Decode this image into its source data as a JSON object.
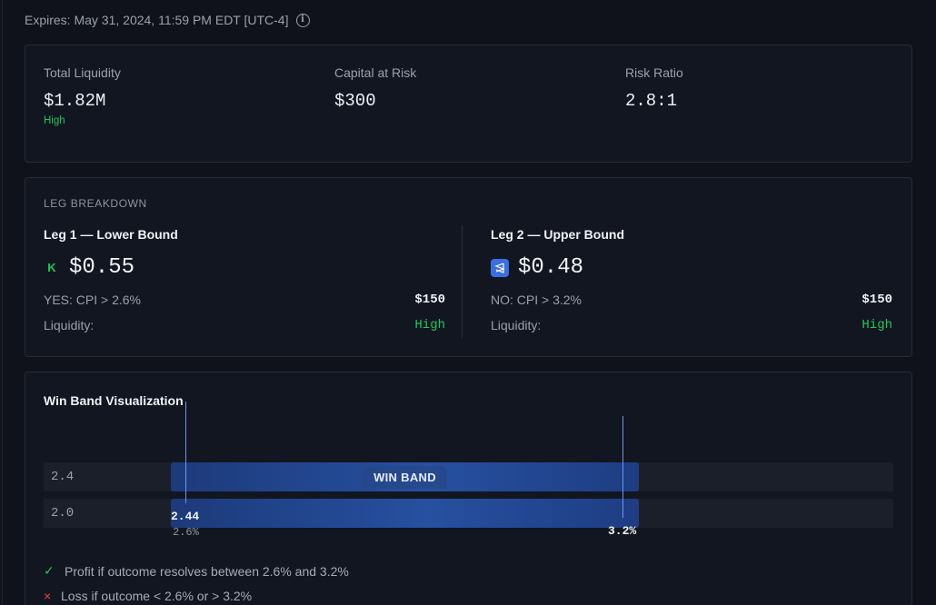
{
  "header": {
    "expires": "Expires: May 31, 2024, 11:59 PM EDT [UTC-4]",
    "info_icon": "info-icon"
  },
  "summary": {
    "total_liquidity": {
      "label": "Total Liquidity",
      "value": "$1.82M",
      "sub": "High"
    },
    "capital_at_risk": {
      "label": "Capital at Risk",
      "value": "$300"
    },
    "risk_ratio": {
      "label": "Risk Ratio",
      "value": "2.8:1"
    }
  },
  "legs": {
    "section_title": "LEG BREAKDOWN",
    "leg1": {
      "title": "Leg 1 — Lower Bound",
      "platform": "K",
      "price": "$0.55",
      "position": "YES: CPI > 2.6%",
      "amount": "$150",
      "liquidity_label": "Liquidity:",
      "liquidity_value": "High"
    },
    "leg2": {
      "title": "Leg 2 — Upper Bound",
      "platform_icon": "polymarket-icon",
      "price": "$0.48",
      "position": "NO: CPI > 3.2%",
      "amount": "$150",
      "liquidity_label": "Liquidity:",
      "liquidity_value": "High"
    }
  },
  "win_band": {
    "title": "Win Band Visualization",
    "rows": [
      {
        "label": "2.4",
        "band_label": "WIN BAND"
      },
      {
        "label": "2.0"
      }
    ],
    "lower_marker": {
      "value": "2.44",
      "sub": "2.6%"
    },
    "upper_marker": {
      "value": "3.2%"
    },
    "profit_text": "Profit if outcome resolves between 2.6% and 3.2%",
    "loss_text": "Loss if outcome < 2.6% or > 3.2%"
  }
}
